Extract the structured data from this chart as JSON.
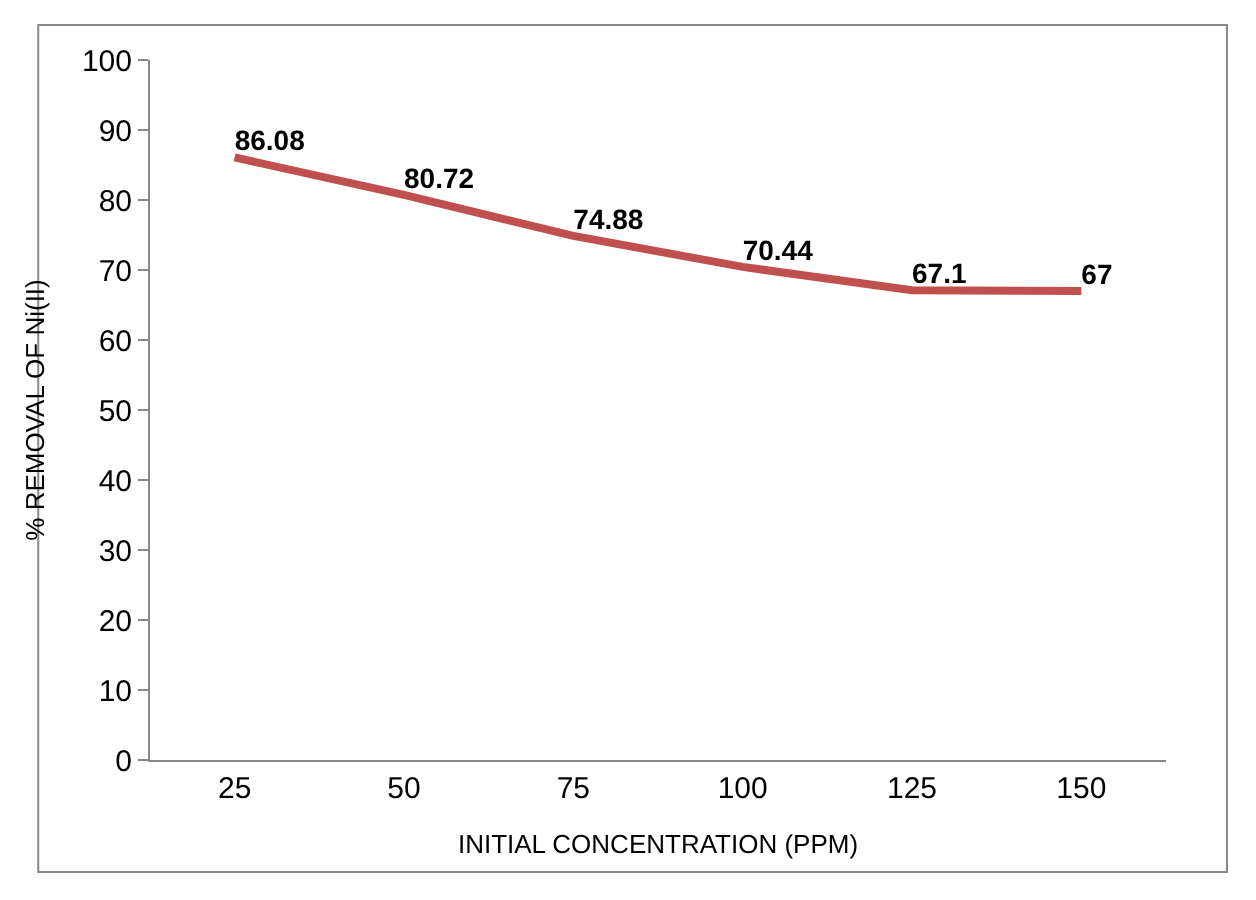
{
  "chart_data": {
    "type": "line",
    "xlabel": "INITIAL CONCENTRATION (PPM)",
    "ylabel": "% REMOVAL OF Ni(II)",
    "categories": [
      "25",
      "50",
      "75",
      "100",
      "125",
      "150"
    ],
    "series": [
      {
        "color": "#c0504d",
        "values": [
          86.08,
          80.72,
          74.88,
          70.44,
          67.1,
          67
        ]
      }
    ],
    "ylim": [
      0,
      100
    ],
    "yticks": [
      0,
      10,
      20,
      30,
      40,
      50,
      60,
      70,
      80,
      90,
      100
    ],
    "data_labels": true,
    "legend": false,
    "marker": "none",
    "line_style": "solid"
  }
}
